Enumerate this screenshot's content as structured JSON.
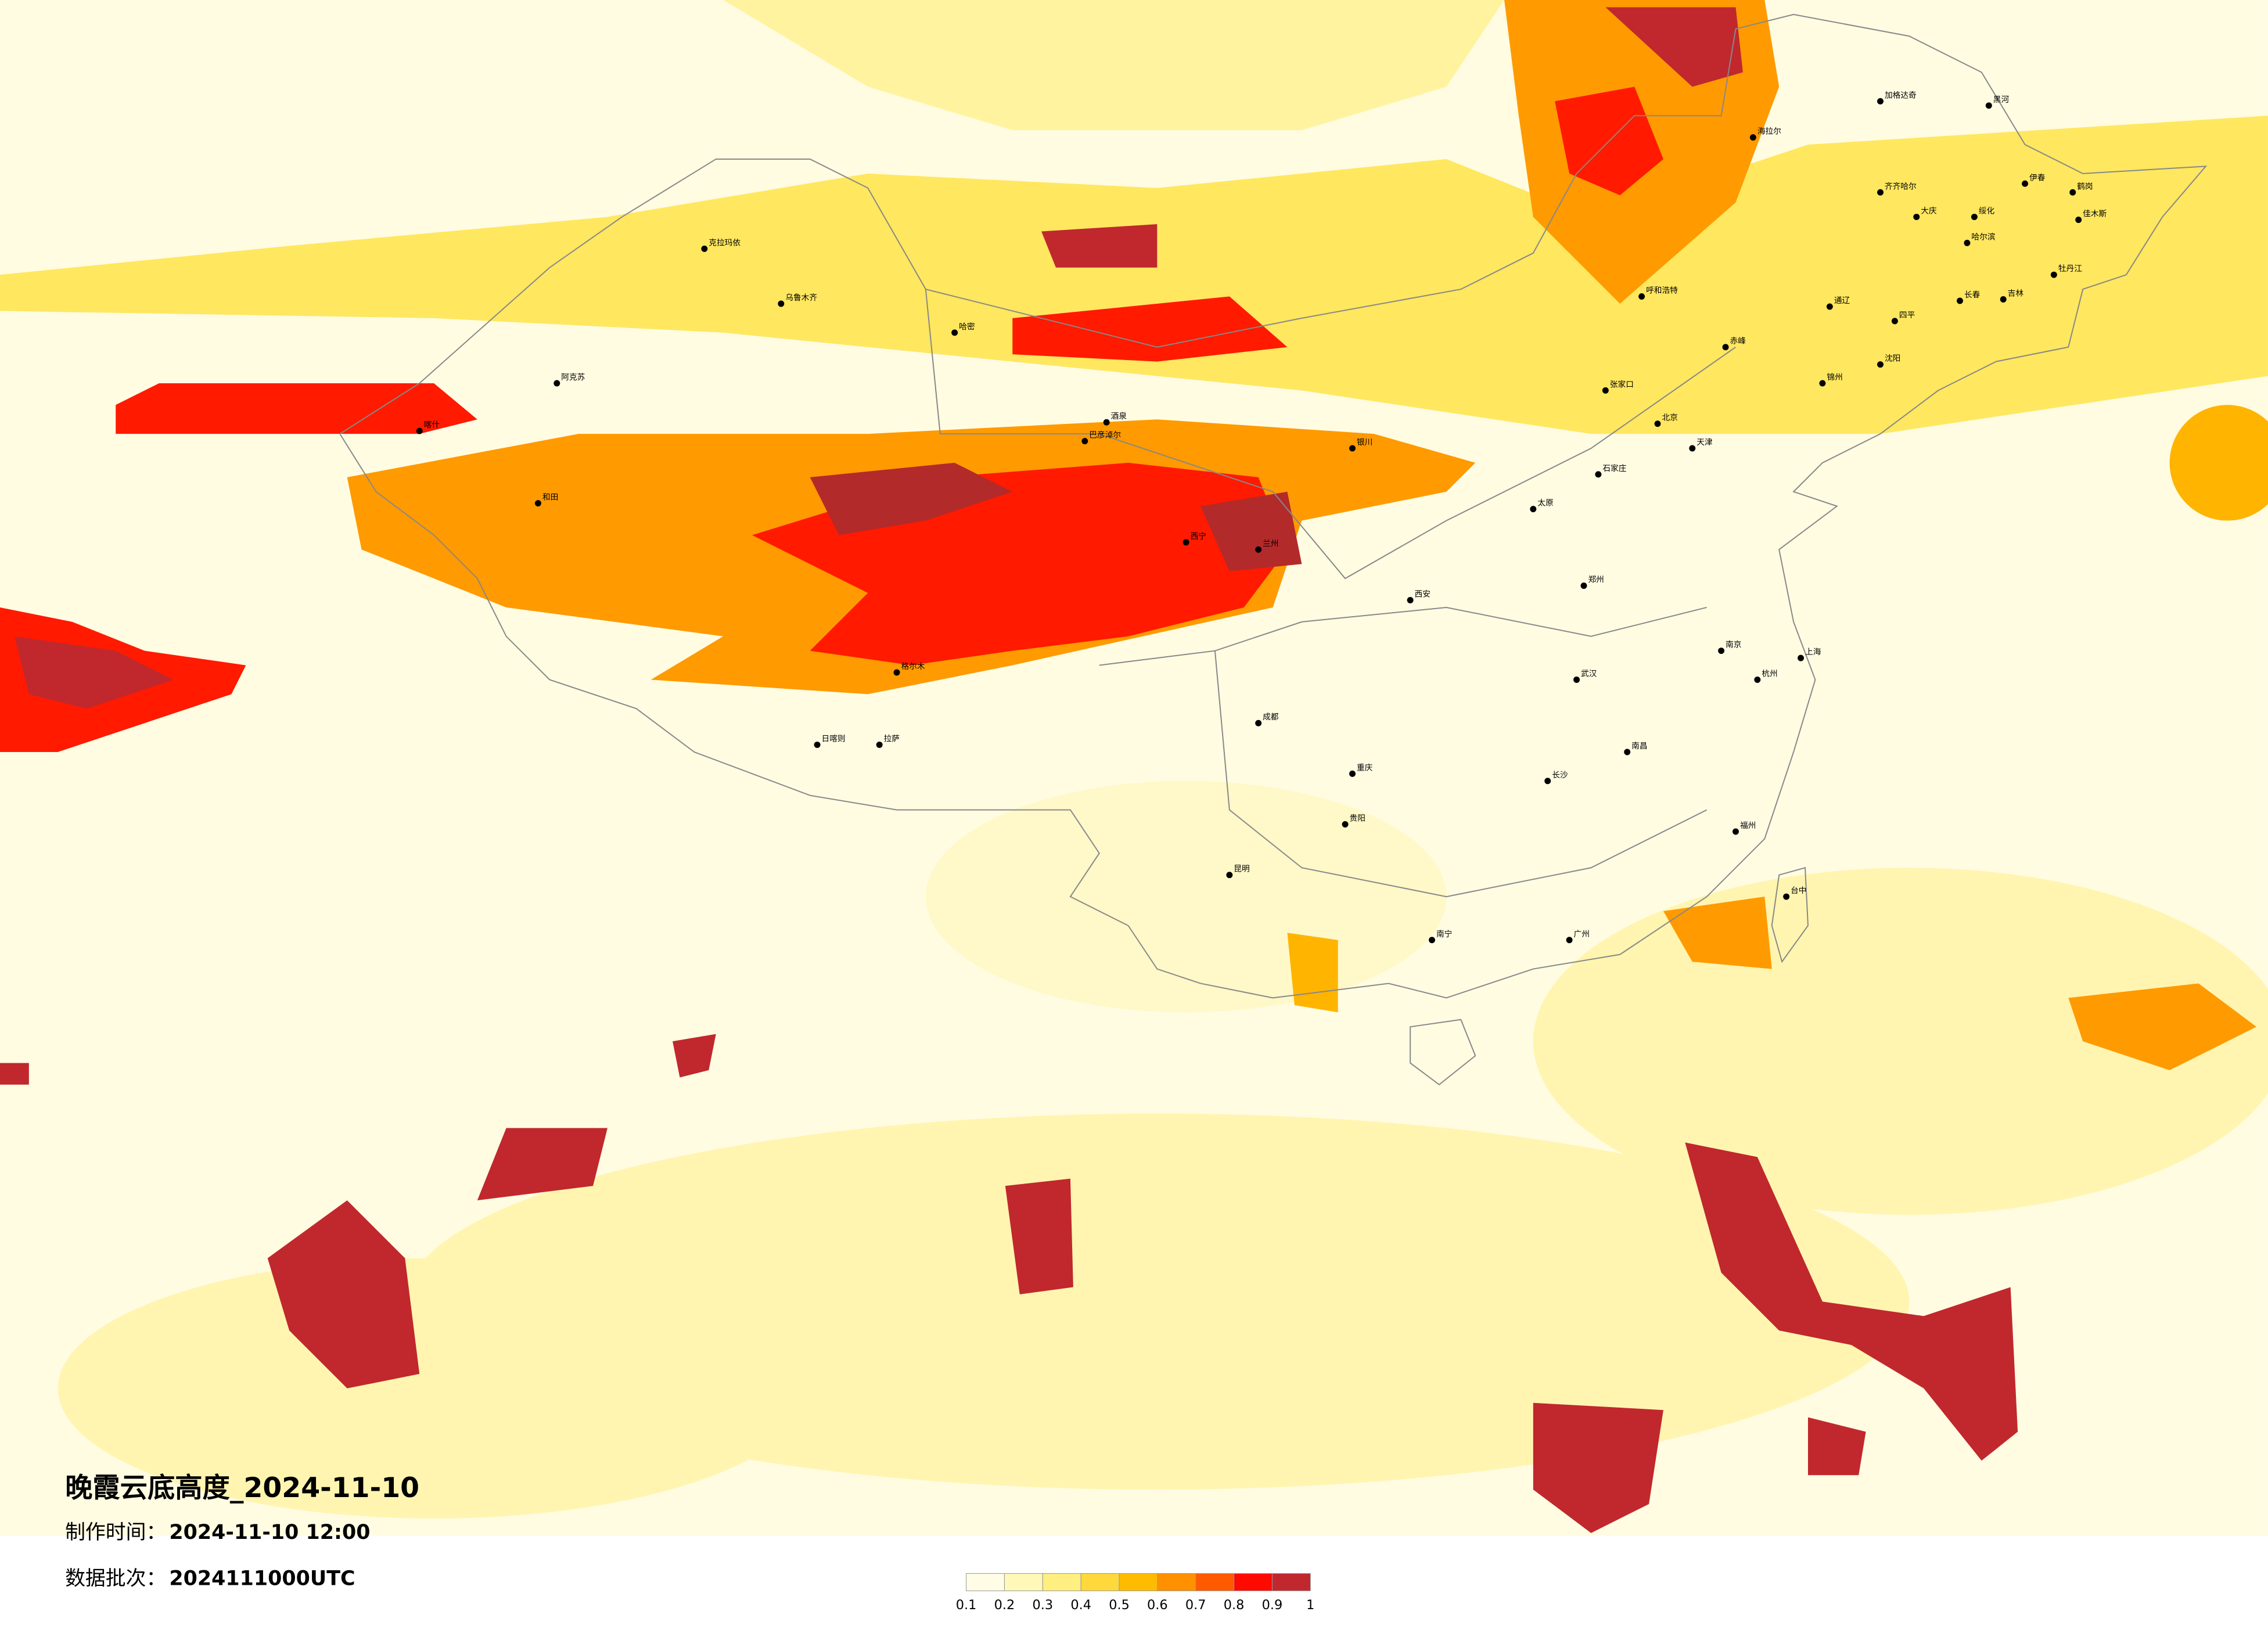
{
  "title": "晚霞云底高度_2024-11-10",
  "info": [
    {
      "label": "制作时间：",
      "value": "2024-11-10 12:00"
    },
    {
      "label": "数据批次：",
      "value": "2024111000UTC"
    }
  ],
  "colorbar": {
    "ticks": [
      0.1,
      0.2,
      0.3,
      0.4,
      0.5,
      0.6,
      0.7,
      0.8,
      0.9,
      1
    ],
    "colors": [
      "#fffde6",
      "#fff8b8",
      "#ffee80",
      "#ffd83c",
      "#ffbb00",
      "#ff9000",
      "#ff5a00",
      "#ff0a00",
      "#c0282d"
    ]
  },
  "cities": [
    "加格达奇",
    "黑河",
    "海拉尔",
    "齐齐哈尔",
    "大庆",
    "伊春",
    "鹤岗",
    "佳木斯",
    "绥化",
    "哈尔滨",
    "牡丹江",
    "长春",
    "吉林",
    "四平",
    "通辽",
    "沈阳",
    "锦州",
    "赤峰",
    "呼和浩特",
    "张家口",
    "北京",
    "天津",
    "石家庄",
    "太原",
    "银川",
    "兰州",
    "西宁",
    "西安",
    "郑州",
    "武汉",
    "长沙",
    "南昌",
    "南京",
    "上海",
    "杭州",
    "成都",
    "重庆",
    "贵阳",
    "昆明",
    "南宁",
    "广州",
    "福州",
    "台中",
    "拉萨",
    "日喀则",
    "乌鲁木齐",
    "克拉玛依",
    "阿克苏",
    "喀什",
    "和田",
    "哈密",
    "酒泉",
    "格尔木",
    "巴彦淖尔"
  ]
}
